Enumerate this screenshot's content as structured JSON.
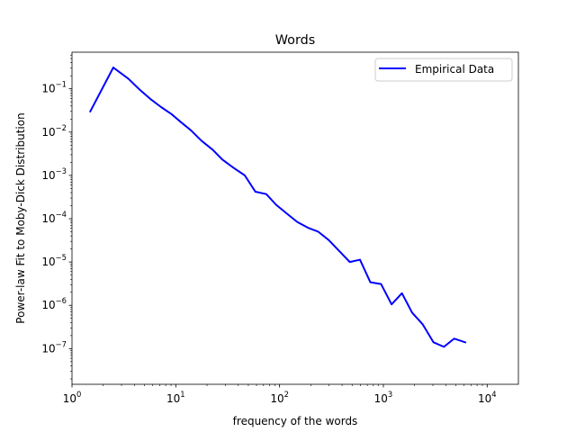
{
  "chart_data": {
    "type": "line",
    "title": "Words",
    "xlabel": "frequency of the words",
    "ylabel": "Power-law Fit to Moby-Dick Distribution",
    "xscale": "log",
    "yscale": "log",
    "xlim": [
      1,
      20000
    ],
    "ylim": [
      1.5e-08,
      0.7
    ],
    "grid": false,
    "legend": {
      "placement": "upper right",
      "entries": [
        "Empirical Data"
      ]
    },
    "x_ticks": [
      {
        "value": 1,
        "base": "10",
        "exp": "0"
      },
      {
        "value": 10,
        "base": "10",
        "exp": "1"
      },
      {
        "value": 100,
        "base": "10",
        "exp": "2"
      },
      {
        "value": 1000,
        "base": "10",
        "exp": "3"
      },
      {
        "value": 10000,
        "base": "10",
        "exp": "4"
      }
    ],
    "y_ticks": [
      {
        "value": 1e-07,
        "base": "10",
        "exp": "−7"
      },
      {
        "value": 1e-06,
        "base": "10",
        "exp": "−6"
      },
      {
        "value": 1e-05,
        "base": "10",
        "exp": "−5"
      },
      {
        "value": 0.0001,
        "base": "10",
        "exp": "−4"
      },
      {
        "value": 0.001,
        "base": "10",
        "exp": "−3"
      },
      {
        "value": 0.01,
        "base": "10",
        "exp": "−2"
      },
      {
        "value": 0.1,
        "base": "10",
        "exp": "−1"
      }
    ],
    "series": [
      {
        "name": "Empirical Data",
        "color": "#0000ff",
        "x": [
          1.5,
          2.5,
          3.5,
          4.5,
          5.7,
          7.2,
          9.1,
          11.2,
          14,
          17.7,
          22.7,
          28.2,
          36,
          46.2,
          58.5,
          74.5,
          92.5,
          118,
          148,
          190,
          236,
          298,
          375,
          475,
          595,
          750,
          950,
          1200,
          1510,
          1890,
          2400,
          3040,
          3830,
          4810,
          6150
        ],
        "y": [
          0.03,
          0.31,
          0.17,
          0.095,
          0.058,
          0.038,
          0.026,
          0.017,
          0.011,
          0.0063,
          0.0039,
          0.0023,
          0.0015,
          0.001,
          0.00042,
          0.00037,
          0.00021,
          0.00013,
          8.4e-05,
          6.1e-05,
          5e-05,
          3.2e-05,
          1.8e-05,
          1e-05,
          1.13e-05,
          3.4e-06,
          3.1e-06,
          1.05e-06,
          1.9e-06,
          6.8e-07,
          3.6e-07,
          1.4e-07,
          1.1e-07,
          1.7e-07,
          1.4e-07
        ]
      }
    ]
  }
}
